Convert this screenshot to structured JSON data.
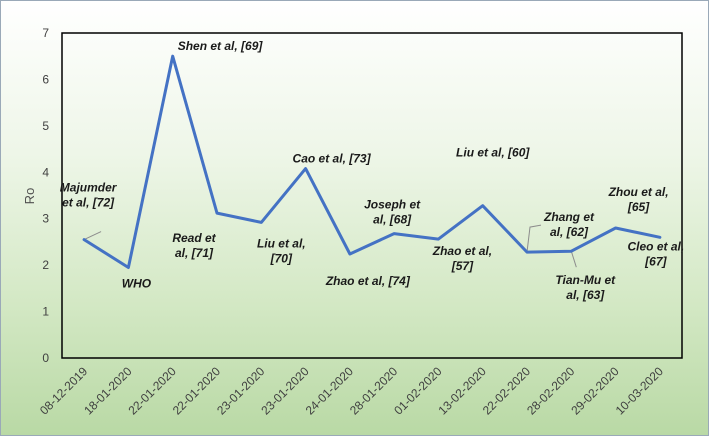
{
  "chart_data": {
    "type": "line",
    "title": "",
    "xlabel": "",
    "ylabel": "Ro",
    "ylim": [
      0,
      7
    ],
    "yticks": [
      0,
      1,
      2,
      3,
      4,
      5,
      6,
      7
    ],
    "grid": false,
    "line_color": "#4472c4",
    "categories": [
      "08-12-2019",
      "18-01-2020",
      "22-01-2020",
      "22-01-2020",
      "23-01-2020",
      "23-01-2020",
      "24-01-2020",
      "28-01-2020",
      "01-02-2020",
      "13-02-2020",
      "22-02-2020",
      "28-02-2020",
      "29-02-2020",
      "10-03-2020"
    ],
    "series": [
      {
        "values": [
          2.55,
          1.95,
          6.5,
          3.12,
          2.92,
          4.08,
          2.24,
          2.68,
          2.56,
          3.28,
          2.28,
          2.3,
          2.8,
          2.6
        ]
      }
    ],
    "annotations": [
      {
        "point": 0,
        "lines": [
          "Majumder",
          "et al, [72]"
        ]
      },
      {
        "point": 1,
        "lines": [
          "WHO"
        ]
      },
      {
        "point": 2,
        "lines": [
          "Shen et al, [69]"
        ]
      },
      {
        "point": 3,
        "lines": [
          "Read et",
          "al, [71]"
        ]
      },
      {
        "point": 4,
        "lines": [
          "Liu et al,",
          "[70]"
        ]
      },
      {
        "point": 5,
        "lines": [
          "Cao et al, [73]"
        ]
      },
      {
        "point": 6,
        "lines": [
          "Zhao et al, [74]"
        ]
      },
      {
        "point": 7,
        "lines": [
          "Joseph et",
          "al, [68]"
        ]
      },
      {
        "point": 8,
        "lines": [
          "Zhao et al,",
          "[57]"
        ]
      },
      {
        "point": 9,
        "lines": [
          "Liu et al, [60]"
        ]
      },
      {
        "point": 10,
        "lines": [
          "Zhang et",
          "al, [62]"
        ]
      },
      {
        "point": 11,
        "lines": [
          "Tian-Mu et",
          "al, [63]"
        ]
      },
      {
        "point": 12,
        "lines": [
          "Zhou et al,",
          "[65]"
        ]
      },
      {
        "point": 13,
        "lines": [
          "Cleo et al,",
          "[67]"
        ]
      }
    ]
  }
}
